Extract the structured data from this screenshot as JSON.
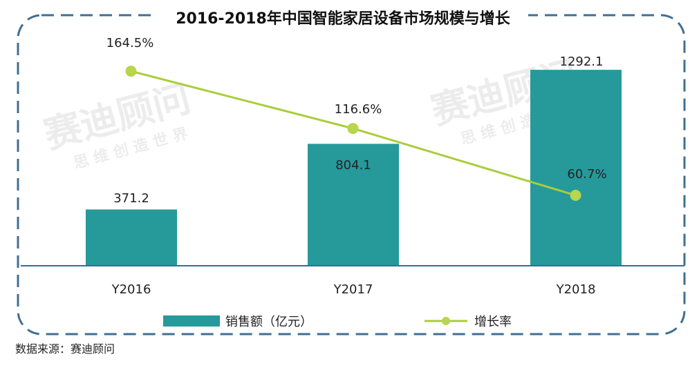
{
  "title": "2016-2018年中国智能家居设备市场规模与增长",
  "source": "数据来源：赛迪顾问",
  "watermark": {
    "main": "赛迪顾问",
    "sub": "思 维 创 造 世 界"
  },
  "colors": {
    "bar": "#26999b",
    "line": "#a9cd3b",
    "marker": "#b7d54d",
    "axis": "#2e6f9e",
    "frame": "#3f6f92"
  },
  "chart_data": {
    "type": "bar",
    "categories": [
      "Y2016",
      "Y2017",
      "Y2018"
    ],
    "series": [
      {
        "name": "销售额（亿元）",
        "type": "bar",
        "values": [
          371.2,
          804.1,
          1292.1
        ],
        "labels": [
          "371.2",
          "804.1",
          "1292.1"
        ]
      },
      {
        "name": "增长率",
        "type": "line",
        "values": [
          164.5,
          116.6,
          60.7
        ],
        "labels": [
          "164.5%",
          "116.6%",
          "60.7%"
        ]
      }
    ],
    "legend": "bottom",
    "grid": false
  }
}
